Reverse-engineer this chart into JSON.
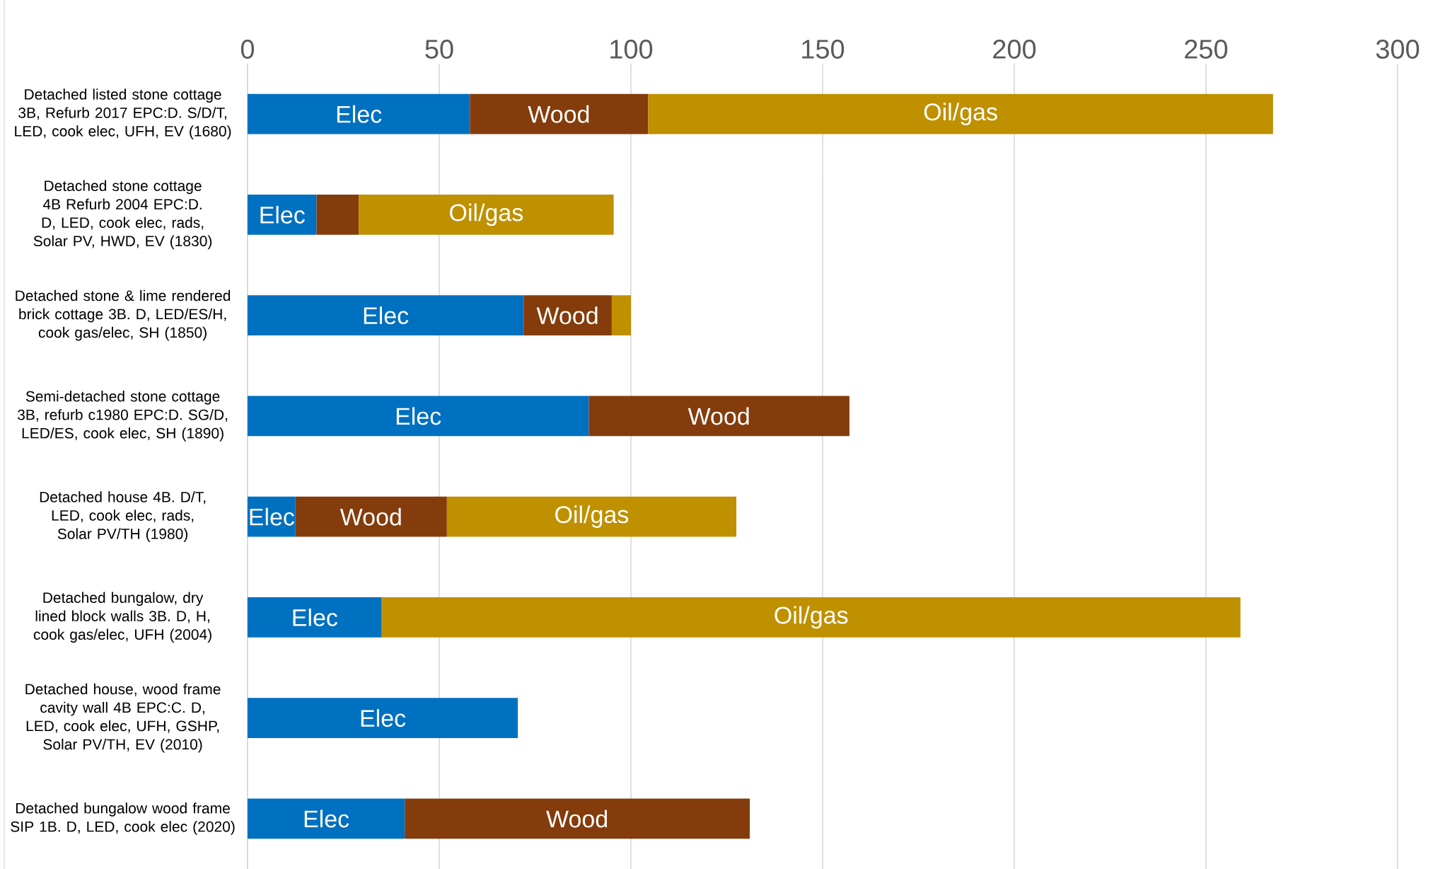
{
  "chart_data": {
    "type": "bar",
    "orientation": "horizontal",
    "stacked": true,
    "categories": [
      "Detached listed stone cottage 3B, Refurb 2017 EPC:D. S/D/T, LED, cook elec, UFH, EV (1680)",
      "Detached stone cottage 4B Refurb 2004 EPC:D. D, LED, cook elec, rads, Solar PV, HWD, EV (1830)",
      "Detached stone & lime rendered brick cottage 3B. D, LED/ES/H, cook gas/elec, SH (1850)",
      "Semi-detached stone cottage 3B, refurb c1980 EPC:D. SG/D, LED/ES, cook elec, SH (1890)",
      "Detached house 4B. D/T, LED, cook elec, rads, Solar PV/TH (1980)",
      "Detached bungalow, dry lined block walls 3B. D, H, cook gas/elec, UFH (2004)",
      "Detached house, wood frame cavity wall 4B EPC:C. D, LED, cook elec, UFH, GSHP, Solar PV/TH, EV (2010)",
      "Detached bungalow wood frame SIP 1B. D, LED, cook elec (2020)"
    ],
    "series": [
      {
        "name": "Elec",
        "color": "#0070c0",
        "values": [
          58,
          18,
          72,
          89,
          12.5,
          35,
          70.5,
          41
        ]
      },
      {
        "name": "Wood",
        "color": "#843c0c",
        "values": [
          46.5,
          11,
          23,
          68,
          39.5,
          null,
          null,
          90
        ]
      },
      {
        "name": "Oil/gas",
        "color": "#bf9000",
        "values": [
          163,
          66.5,
          5,
          null,
          75.5,
          224,
          null,
          null
        ]
      }
    ],
    "xlim": [
      0,
      300
    ],
    "xticks": [
      0,
      50,
      100,
      150,
      200,
      250,
      300
    ],
    "grid": "x"
  }
}
